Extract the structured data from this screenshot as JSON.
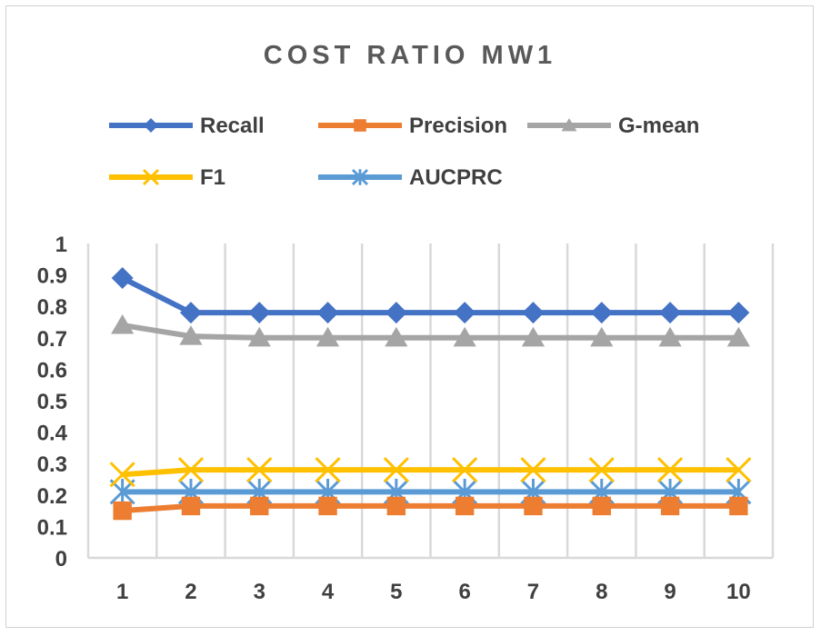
{
  "chart_data": {
    "type": "line",
    "title": "COST RATIO MW1",
    "xlabel": "",
    "ylabel": "",
    "categories": [
      "1",
      "2",
      "3",
      "4",
      "5",
      "6",
      "7",
      "8",
      "9",
      "10"
    ],
    "ylim": [
      0,
      1
    ],
    "yticks": [
      "0",
      "0.1",
      "0.2",
      "0.3",
      "0.4",
      "0.5",
      "0.6",
      "0.7",
      "0.8",
      "0.9",
      "1"
    ],
    "grid": "vertical",
    "legend_position": "top",
    "series": [
      {
        "name": "Recall",
        "color": "#4472C4",
        "marker": "diamond",
        "values": [
          0.89,
          0.78,
          0.78,
          0.78,
          0.78,
          0.78,
          0.78,
          0.78,
          0.78,
          0.78
        ]
      },
      {
        "name": "Precision",
        "color": "#ED7D31",
        "marker": "square",
        "values": [
          0.15,
          0.165,
          0.165,
          0.165,
          0.165,
          0.165,
          0.165,
          0.165,
          0.165,
          0.165
        ]
      },
      {
        "name": "G-mean",
        "color": "#A5A5A5",
        "marker": "triangle",
        "values": [
          0.74,
          0.705,
          0.7,
          0.7,
          0.7,
          0.7,
          0.7,
          0.7,
          0.7,
          0.7
        ]
      },
      {
        "name": "F1",
        "color": "#FFC000",
        "marker": "x",
        "values": [
          0.265,
          0.28,
          0.28,
          0.28,
          0.28,
          0.28,
          0.28,
          0.28,
          0.28,
          0.28
        ]
      },
      {
        "name": "AUCPRC",
        "color": "#5B9BD5",
        "marker": "star",
        "values": [
          0.21,
          0.21,
          0.21,
          0.21,
          0.21,
          0.21,
          0.21,
          0.21,
          0.21,
          0.21
        ]
      }
    ]
  }
}
